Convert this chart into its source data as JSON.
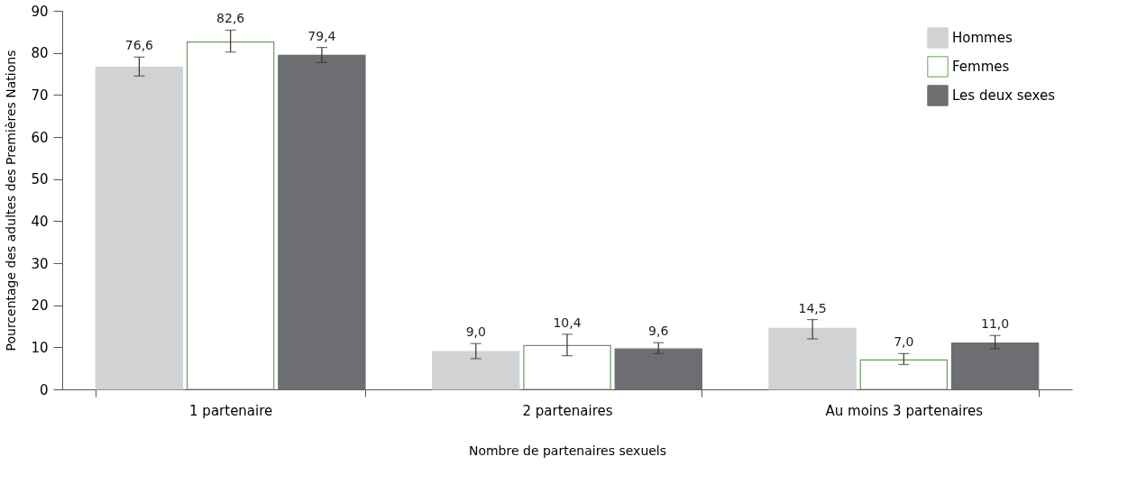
{
  "chart_data": {
    "type": "bar",
    "xlabel": "Nombre de partenaires sexuels",
    "ylabel": "Pourcentage des adultes des Premières Nations",
    "categories": [
      "1 partenaire",
      "2 partenaires",
      "Au moins 3 partenaires"
    ],
    "series": [
      {
        "name": "Hommes",
        "color": "#d1d2d4",
        "values": [
          76.6,
          9.0,
          14.5
        ],
        "value_labels": [
          "76,6",
          "9,0",
          "14,5"
        ],
        "errors": [
          [
            74.5,
            79.0
          ],
          [
            7.3,
            10.9
          ],
          [
            12.0,
            16.6
          ]
        ]
      },
      {
        "name": "Femmes",
        "color": "#6a9d5a",
        "values": [
          82.6,
          10.4,
          7.0
        ],
        "value_labels": [
          "82,6",
          "10,4",
          "7,0"
        ],
        "errors": [
          [
            80.2,
            85.4
          ],
          [
            8.0,
            13.1
          ],
          [
            5.9,
            8.5
          ]
        ]
      },
      {
        "name": "Les deux sexes",
        "color": "#6d6e71",
        "values": [
          79.4,
          9.6,
          11.0
        ],
        "value_labels": [
          "79,4",
          "9,6",
          "11,0"
        ],
        "errors": [
          [
            77.7,
            81.3
          ],
          [
            8.5,
            11.1
          ],
          [
            9.7,
            12.8
          ]
        ]
      }
    ],
    "ylim": [
      0,
      90
    ],
    "yticks": [
      0,
      10,
      20,
      30,
      40,
      50,
      60,
      70,
      80,
      90
    ],
    "grid": false,
    "legend": "top right"
  }
}
